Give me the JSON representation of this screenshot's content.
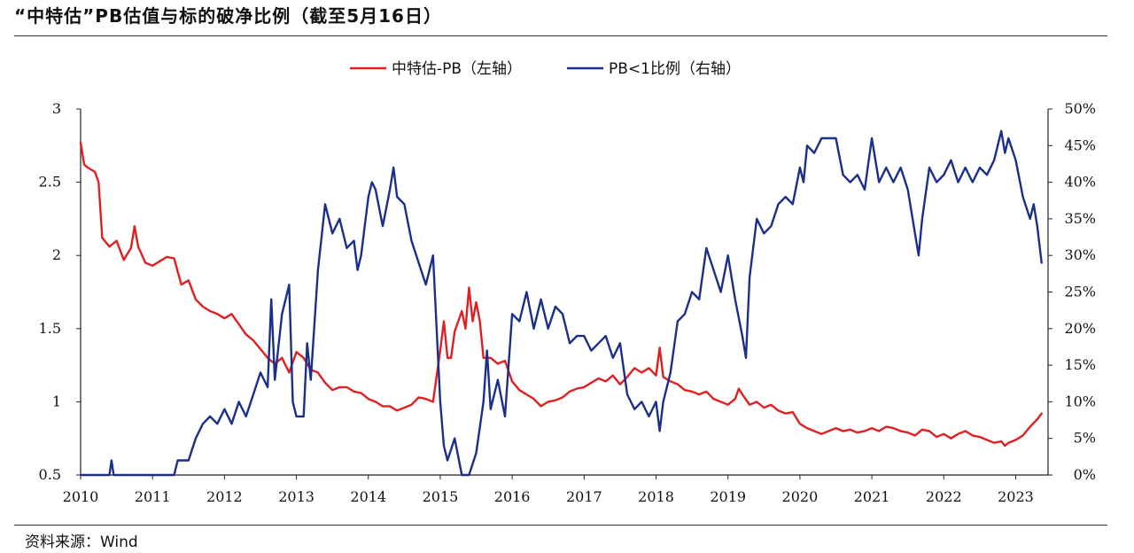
{
  "page": {
    "title": "“中特估”PB估值与标的破净比例（截至5月16日）",
    "source": "资料来源：Wind"
  },
  "chart_data": {
    "type": "line",
    "title": "“中特估”PB估值与标的破净比例（截至5月16日）",
    "x_ticks": [
      "2010",
      "2011",
      "2012",
      "2013",
      "2014",
      "2015",
      "2016",
      "2017",
      "2018",
      "2019",
      "2020",
      "2021",
      "2022",
      "2023"
    ],
    "xlim": [
      2010.0,
      2023.45
    ],
    "y_left": {
      "ticks": [
        "0.5",
        "1",
        "1.5",
        "2",
        "2.5",
        "3"
      ],
      "ylim": [
        0.5,
        3
      ]
    },
    "y_right": {
      "ticks": [
        "0%",
        "5%",
        "10%",
        "15%",
        "20%",
        "25%",
        "30%",
        "35%",
        "40%",
        "45%",
        "50%"
      ],
      "ylim": [
        0,
        50
      ]
    },
    "legend_position": "top-center",
    "series": [
      {
        "name": "中特估-PB（左轴）",
        "axis": "left",
        "color": "#e02020",
        "points": [
          [
            2010.0,
            2.77
          ],
          [
            2010.05,
            2.62
          ],
          [
            2010.1,
            2.6
          ],
          [
            2010.2,
            2.57
          ],
          [
            2010.25,
            2.5
          ],
          [
            2010.3,
            2.12
          ],
          [
            2010.4,
            2.06
          ],
          [
            2010.5,
            2.1
          ],
          [
            2010.6,
            1.97
          ],
          [
            2010.7,
            2.05
          ],
          [
            2010.75,
            2.2
          ],
          [
            2010.8,
            2.06
          ],
          [
            2010.9,
            1.95
          ],
          [
            2011.0,
            1.93
          ],
          [
            2011.1,
            1.96
          ],
          [
            2011.2,
            1.99
          ],
          [
            2011.3,
            1.98
          ],
          [
            2011.4,
            1.8
          ],
          [
            2011.5,
            1.83
          ],
          [
            2011.6,
            1.7
          ],
          [
            2011.7,
            1.65
          ],
          [
            2011.8,
            1.62
          ],
          [
            2011.9,
            1.6
          ],
          [
            2012.0,
            1.57
          ],
          [
            2012.1,
            1.6
          ],
          [
            2012.2,
            1.53
          ],
          [
            2012.3,
            1.46
          ],
          [
            2012.4,
            1.42
          ],
          [
            2012.5,
            1.36
          ],
          [
            2012.6,
            1.3
          ],
          [
            2012.7,
            1.26
          ],
          [
            2012.8,
            1.3
          ],
          [
            2012.9,
            1.2
          ],
          [
            2013.0,
            1.34
          ],
          [
            2013.1,
            1.3
          ],
          [
            2013.2,
            1.22
          ],
          [
            2013.3,
            1.2
          ],
          [
            2013.4,
            1.13
          ],
          [
            2013.5,
            1.08
          ],
          [
            2013.6,
            1.1
          ],
          [
            2013.7,
            1.1
          ],
          [
            2013.8,
            1.07
          ],
          [
            2013.9,
            1.06
          ],
          [
            2014.0,
            1.02
          ],
          [
            2014.1,
            1.0
          ],
          [
            2014.2,
            0.97
          ],
          [
            2014.3,
            0.97
          ],
          [
            2014.4,
            0.94
          ],
          [
            2014.5,
            0.96
          ],
          [
            2014.6,
            0.98
          ],
          [
            2014.7,
            1.03
          ],
          [
            2014.8,
            1.02
          ],
          [
            2014.9,
            1.0
          ],
          [
            2015.0,
            1.35
          ],
          [
            2015.05,
            1.55
          ],
          [
            2015.1,
            1.3
          ],
          [
            2015.15,
            1.3
          ],
          [
            2015.2,
            1.48
          ],
          [
            2015.3,
            1.62
          ],
          [
            2015.35,
            1.5
          ],
          [
            2015.4,
            1.78
          ],
          [
            2015.45,
            1.55
          ],
          [
            2015.5,
            1.68
          ],
          [
            2015.55,
            1.55
          ],
          [
            2015.6,
            1.3
          ],
          [
            2015.7,
            1.3
          ],
          [
            2015.8,
            1.26
          ],
          [
            2015.9,
            1.28
          ],
          [
            2016.0,
            1.14
          ],
          [
            2016.1,
            1.08
          ],
          [
            2016.2,
            1.05
          ],
          [
            2016.3,
            1.02
          ],
          [
            2016.4,
            0.97
          ],
          [
            2016.5,
            1.0
          ],
          [
            2016.6,
            1.01
          ],
          [
            2016.7,
            1.03
          ],
          [
            2016.8,
            1.07
          ],
          [
            2016.9,
            1.09
          ],
          [
            2017.0,
            1.1
          ],
          [
            2017.1,
            1.13
          ],
          [
            2017.2,
            1.16
          ],
          [
            2017.3,
            1.14
          ],
          [
            2017.4,
            1.18
          ],
          [
            2017.5,
            1.12
          ],
          [
            2017.6,
            1.17
          ],
          [
            2017.7,
            1.23
          ],
          [
            2017.8,
            1.2
          ],
          [
            2017.9,
            1.23
          ],
          [
            2018.0,
            1.18
          ],
          [
            2018.05,
            1.37
          ],
          [
            2018.1,
            1.17
          ],
          [
            2018.2,
            1.14
          ],
          [
            2018.3,
            1.12
          ],
          [
            2018.4,
            1.08
          ],
          [
            2018.5,
            1.07
          ],
          [
            2018.6,
            1.05
          ],
          [
            2018.7,
            1.07
          ],
          [
            2018.8,
            1.02
          ],
          [
            2018.9,
            1.0
          ],
          [
            2019.0,
            0.98
          ],
          [
            2019.1,
            1.02
          ],
          [
            2019.15,
            1.09
          ],
          [
            2019.2,
            1.05
          ],
          [
            2019.3,
            0.98
          ],
          [
            2019.4,
            1.0
          ],
          [
            2019.5,
            0.96
          ],
          [
            2019.6,
            0.98
          ],
          [
            2019.7,
            0.94
          ],
          [
            2019.8,
            0.92
          ],
          [
            2019.9,
            0.93
          ],
          [
            2020.0,
            0.85
          ],
          [
            2020.1,
            0.82
          ],
          [
            2020.2,
            0.8
          ],
          [
            2020.3,
            0.78
          ],
          [
            2020.4,
            0.8
          ],
          [
            2020.5,
            0.82
          ],
          [
            2020.6,
            0.8
          ],
          [
            2020.7,
            0.81
          ],
          [
            2020.8,
            0.79
          ],
          [
            2020.9,
            0.8
          ],
          [
            2021.0,
            0.82
          ],
          [
            2021.1,
            0.8
          ],
          [
            2021.2,
            0.83
          ],
          [
            2021.3,
            0.82
          ],
          [
            2021.4,
            0.8
          ],
          [
            2021.5,
            0.79
          ],
          [
            2021.6,
            0.77
          ],
          [
            2021.7,
            0.81
          ],
          [
            2021.8,
            0.8
          ],
          [
            2021.9,
            0.76
          ],
          [
            2022.0,
            0.78
          ],
          [
            2022.1,
            0.75
          ],
          [
            2022.2,
            0.78
          ],
          [
            2022.3,
            0.8
          ],
          [
            2022.4,
            0.77
          ],
          [
            2022.5,
            0.76
          ],
          [
            2022.6,
            0.74
          ],
          [
            2022.7,
            0.72
          ],
          [
            2022.8,
            0.73
          ],
          [
            2022.85,
            0.7
          ],
          [
            2022.9,
            0.72
          ],
          [
            2023.0,
            0.74
          ],
          [
            2023.1,
            0.77
          ],
          [
            2023.2,
            0.83
          ],
          [
            2023.3,
            0.88
          ],
          [
            2023.36,
            0.92
          ]
        ]
      },
      {
        "name": "PB<1比例（右轴）",
        "axis": "right",
        "color": "#1a2f8c",
        "points": [
          [
            2010.0,
            0
          ],
          [
            2010.4,
            0
          ],
          [
            2010.43,
            2
          ],
          [
            2010.46,
            0
          ],
          [
            2011.0,
            0
          ],
          [
            2011.3,
            0
          ],
          [
            2011.35,
            2
          ],
          [
            2011.5,
            2
          ],
          [
            2011.6,
            5
          ],
          [
            2011.7,
            7
          ],
          [
            2011.8,
            8
          ],
          [
            2011.9,
            7
          ],
          [
            2012.0,
            9
          ],
          [
            2012.1,
            7
          ],
          [
            2012.2,
            10
          ],
          [
            2012.3,
            8
          ],
          [
            2012.4,
            11
          ],
          [
            2012.5,
            14
          ],
          [
            2012.6,
            12
          ],
          [
            2012.65,
            24
          ],
          [
            2012.7,
            13
          ],
          [
            2012.8,
            22
          ],
          [
            2012.9,
            26
          ],
          [
            2012.95,
            10
          ],
          [
            2013.0,
            8
          ],
          [
            2013.1,
            8
          ],
          [
            2013.15,
            18
          ],
          [
            2013.2,
            13
          ],
          [
            2013.3,
            28
          ],
          [
            2013.4,
            37
          ],
          [
            2013.5,
            33
          ],
          [
            2013.6,
            35
          ],
          [
            2013.7,
            31
          ],
          [
            2013.8,
            32
          ],
          [
            2013.85,
            28
          ],
          [
            2013.9,
            30
          ],
          [
            2014.0,
            38
          ],
          [
            2014.05,
            40
          ],
          [
            2014.1,
            39
          ],
          [
            2014.2,
            34
          ],
          [
            2014.3,
            39
          ],
          [
            2014.35,
            42
          ],
          [
            2014.4,
            38
          ],
          [
            2014.5,
            37
          ],
          [
            2014.6,
            32
          ],
          [
            2014.7,
            29
          ],
          [
            2014.8,
            26
          ],
          [
            2014.9,
            30
          ],
          [
            2015.0,
            10
          ],
          [
            2015.05,
            4
          ],
          [
            2015.1,
            2
          ],
          [
            2015.2,
            5
          ],
          [
            2015.3,
            0
          ],
          [
            2015.4,
            0
          ],
          [
            2015.5,
            3
          ],
          [
            2015.6,
            10
          ],
          [
            2015.65,
            17
          ],
          [
            2015.7,
            9
          ],
          [
            2015.8,
            13
          ],
          [
            2015.9,
            8
          ],
          [
            2016.0,
            22
          ],
          [
            2016.1,
            21
          ],
          [
            2016.2,
            25
          ],
          [
            2016.3,
            20
          ],
          [
            2016.4,
            24
          ],
          [
            2016.5,
            20
          ],
          [
            2016.6,
            23
          ],
          [
            2016.7,
            22
          ],
          [
            2016.8,
            18
          ],
          [
            2016.9,
            19
          ],
          [
            2017.0,
            19
          ],
          [
            2017.1,
            17
          ],
          [
            2017.2,
            18
          ],
          [
            2017.3,
            19
          ],
          [
            2017.4,
            16
          ],
          [
            2017.5,
            18
          ],
          [
            2017.6,
            11
          ],
          [
            2017.7,
            9
          ],
          [
            2017.8,
            10
          ],
          [
            2017.9,
            8
          ],
          [
            2018.0,
            10
          ],
          [
            2018.05,
            6
          ],
          [
            2018.1,
            10
          ],
          [
            2018.2,
            14
          ],
          [
            2018.3,
            21
          ],
          [
            2018.4,
            22
          ],
          [
            2018.5,
            25
          ],
          [
            2018.6,
            24
          ],
          [
            2018.7,
            31
          ],
          [
            2018.8,
            28
          ],
          [
            2018.9,
            25
          ],
          [
            2019.0,
            30
          ],
          [
            2019.1,
            24
          ],
          [
            2019.2,
            19
          ],
          [
            2019.25,
            16
          ],
          [
            2019.3,
            27
          ],
          [
            2019.4,
            35
          ],
          [
            2019.5,
            33
          ],
          [
            2019.6,
            34
          ],
          [
            2019.7,
            37
          ],
          [
            2019.8,
            38
          ],
          [
            2019.9,
            37
          ],
          [
            2020.0,
            42
          ],
          [
            2020.05,
            40
          ],
          [
            2020.1,
            45
          ],
          [
            2020.2,
            44
          ],
          [
            2020.3,
            46
          ],
          [
            2020.4,
            46
          ],
          [
            2020.5,
            46
          ],
          [
            2020.6,
            41
          ],
          [
            2020.7,
            40
          ],
          [
            2020.8,
            41
          ],
          [
            2020.9,
            39
          ],
          [
            2021.0,
            46
          ],
          [
            2021.1,
            40
          ],
          [
            2021.2,
            42
          ],
          [
            2021.3,
            40
          ],
          [
            2021.4,
            42
          ],
          [
            2021.5,
            39
          ],
          [
            2021.6,
            33
          ],
          [
            2021.65,
            30
          ],
          [
            2021.7,
            35
          ],
          [
            2021.8,
            42
          ],
          [
            2021.9,
            40
          ],
          [
            2022.0,
            41
          ],
          [
            2022.1,
            43
          ],
          [
            2022.2,
            40
          ],
          [
            2022.3,
            42
          ],
          [
            2022.4,
            40
          ],
          [
            2022.5,
            42
          ],
          [
            2022.6,
            41
          ],
          [
            2022.7,
            43
          ],
          [
            2022.8,
            47
          ],
          [
            2022.85,
            44
          ],
          [
            2022.9,
            46
          ],
          [
            2023.0,
            43
          ],
          [
            2023.1,
            38
          ],
          [
            2023.2,
            35
          ],
          [
            2023.25,
            37
          ],
          [
            2023.3,
            34
          ],
          [
            2023.36,
            29
          ]
        ]
      }
    ]
  }
}
